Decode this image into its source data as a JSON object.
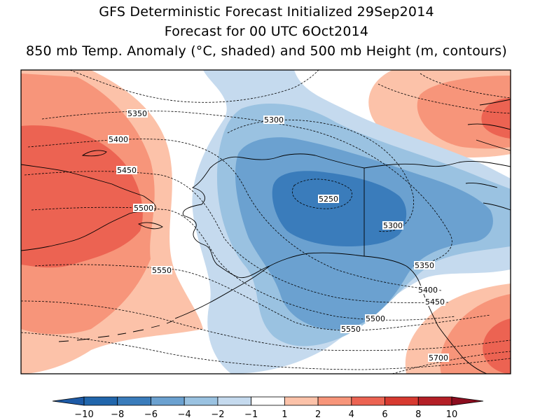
{
  "titles": {
    "line1": "GFS Deterministic Forecast Initialized 29Sep2014",
    "line2": "Forecast for 00 UTC 6Oct2014",
    "line3": "850 mb Temp. Anomaly (°C, shaded) and 500 mb Height (m, contours)"
  },
  "contour_labels": [
    "5350",
    "5300",
    "5400",
    "5450",
    "5250",
    "5500",
    "5300",
    "5550",
    "5350",
    "5400",
    "5450",
    "5500",
    "5550",
    "5700"
  ],
  "colorbar": {
    "ticks": [
      "−10",
      "−8",
      "−6",
      "−4",
      "−2",
      "−1",
      "1",
      "2",
      "4",
      "6",
      "8",
      "10"
    ],
    "colors": [
      "#2166ac",
      "#3a7cbb",
      "#6ba1d0",
      "#9ac2e1",
      "#c5daee",
      "#ffffff",
      "#fcc2a9",
      "#f7957a",
      "#ec6352",
      "#d73a30",
      "#b41f26"
    ],
    "low_extend_color": "#1d5aa6",
    "high_extend_color": "#8c0d1f"
  },
  "colors": {
    "cold_1": "#c5daee",
    "cold_2": "#9ac2e1",
    "cold_3": "#6ba1d0",
    "cold_4": "#3a7cbb",
    "warm_1": "#fcc2a9",
    "warm_2": "#f7957a",
    "warm_3": "#ec6352"
  }
}
